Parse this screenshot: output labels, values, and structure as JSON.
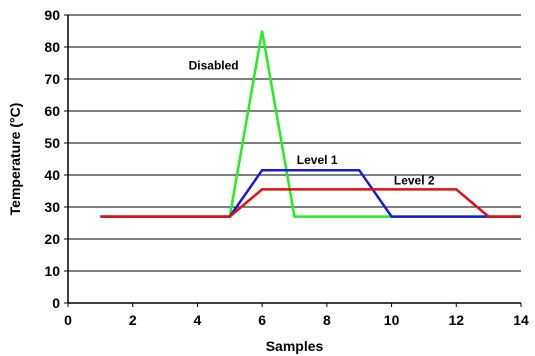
{
  "chart_data": {
    "type": "line",
    "title": "",
    "xlabel": "Samples",
    "ylabel": "Temperature (°C)",
    "xlim": [
      0,
      14
    ],
    "ylim": [
      0,
      90
    ],
    "xticks": [
      0,
      2,
      4,
      6,
      8,
      10,
      12,
      14
    ],
    "yticks": [
      0,
      10,
      20,
      30,
      40,
      50,
      60,
      70,
      80,
      90
    ],
    "grid": "horizontal",
    "legend": "none",
    "series": [
      {
        "label": "Disabled",
        "color": "#22ee22",
        "points": [
          [
            1,
            27
          ],
          [
            5,
            27
          ],
          [
            6,
            85
          ],
          [
            7,
            27
          ],
          [
            14,
            27
          ]
        ]
      },
      {
        "label": "Level 1",
        "color": "#1a1ad6",
        "points": [
          [
            1,
            27
          ],
          [
            5,
            27
          ],
          [
            6,
            41.5
          ],
          [
            9,
            41.5
          ],
          [
            10,
            27
          ],
          [
            14,
            27
          ]
        ]
      },
      {
        "label": "Level 2",
        "color": "#e01010",
        "points": [
          [
            1,
            27
          ],
          [
            5,
            27
          ],
          [
            6,
            35.5
          ],
          [
            12,
            35.5
          ],
          [
            13,
            27
          ],
          [
            14,
            27
          ]
        ]
      }
    ],
    "annotations": [
      {
        "text": "Disabled",
        "x": 4.5,
        "y": 73
      },
      {
        "text": "Level 1",
        "x": 7.7,
        "y": 43.5
      },
      {
        "text": "Level 2",
        "x": 10.7,
        "y": 37
      }
    ]
  }
}
